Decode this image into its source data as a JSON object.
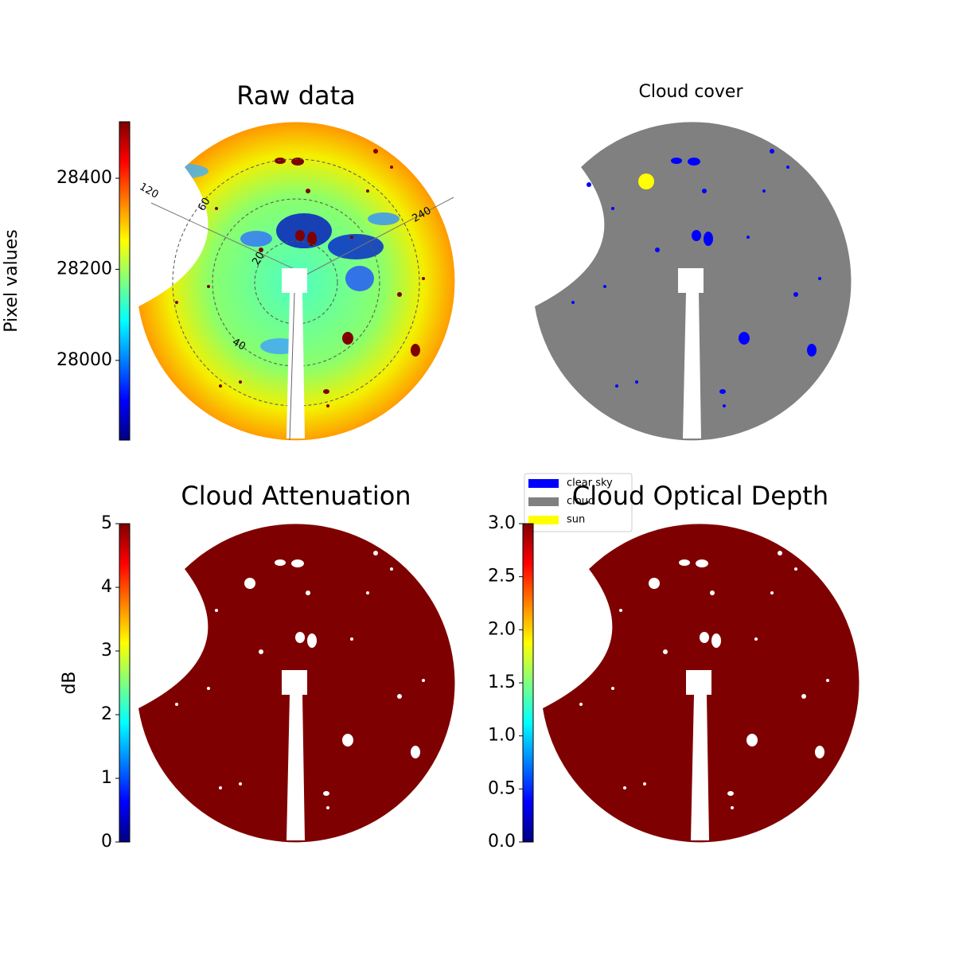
{
  "chart_data": [
    {
      "type": "image",
      "title": "Raw data",
      "colormap": "jet",
      "colorbar": {
        "label": "Pixel values",
        "lim": [
          27825,
          28524
        ],
        "ticks": [
          28000,
          28200,
          28400
        ]
      },
      "polar_labels": [
        "120",
        "60",
        "240",
        "20",
        "40"
      ]
    },
    {
      "type": "classification",
      "title": "Cloud cover",
      "legend": [
        {
          "name": "clear sky",
          "color": "#0000ff"
        },
        {
          "name": "cloud",
          "color": "#808080"
        },
        {
          "name": "sun",
          "color": "#ffff00"
        }
      ]
    },
    {
      "type": "image",
      "title": "Cloud Attenuation",
      "colormap": "jet",
      "colorbar": {
        "label": "dB",
        "lim": [
          0,
          5
        ],
        "ticks": [
          0,
          1,
          2,
          3,
          4,
          5
        ]
      }
    },
    {
      "type": "image",
      "title": "Cloud Optical Depth",
      "colormap": "jet",
      "colorbar": {
        "lim": [
          0,
          3
        ],
        "ticks": [
          {
            "value": 0,
            "label": "0.0"
          },
          0.5,
          {
            "value": 1,
            "label": "1.0"
          },
          1.5,
          {
            "value": 2,
            "label": "2.0"
          },
          2.5,
          {
            "value": 3,
            "label": "3.0"
          }
        ]
      }
    }
  ]
}
